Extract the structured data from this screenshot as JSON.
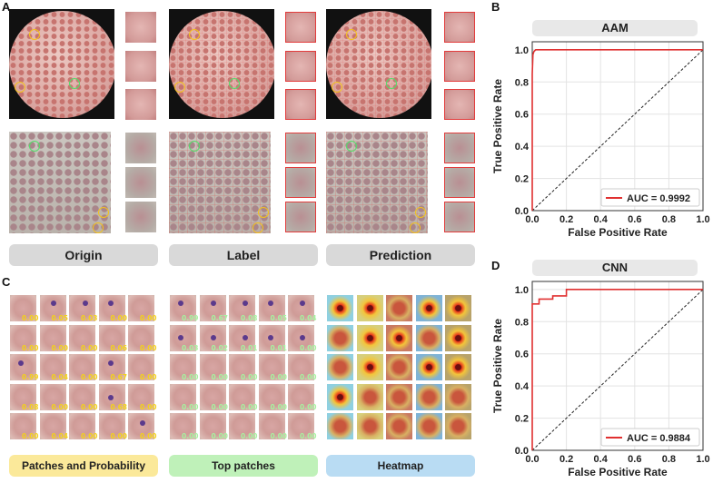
{
  "panels": {
    "a": "A",
    "b": "B",
    "c": "C",
    "d": "D"
  },
  "panel_a": {
    "captions": [
      "Origin",
      "Label",
      "Prediction"
    ]
  },
  "panel_c": {
    "captions": [
      "Patches and Probability",
      "Top patches",
      "Heatmap"
    ],
    "probabilities": [
      [
        "0.00",
        "0.05",
        "0.03",
        "0.00",
        "0.00"
      ],
      [
        "0.00",
        "0.00",
        "0.00",
        "0.06",
        "0.00"
      ],
      [
        "0.99",
        "0.04",
        "0.00",
        "0.67",
        "0.00"
      ],
      [
        "0.08",
        "0.00",
        "0.00",
        "0.68",
        "0.00"
      ],
      [
        "0.00",
        "0.04",
        "0.00",
        "0.00",
        "0.00"
      ]
    ],
    "probability_highlight": [
      [
        false,
        true,
        true,
        true,
        false
      ],
      [
        false,
        false,
        false,
        false,
        false
      ],
      [
        true,
        false,
        false,
        true,
        false
      ],
      [
        false,
        false,
        false,
        true,
        false
      ],
      [
        false,
        false,
        false,
        false,
        true
      ]
    ],
    "top_patch_values": [
      [
        "0.99",
        "0.67",
        "0.08",
        "0.05",
        "0.04"
      ],
      [
        "0.03",
        "0.02",
        "0.01",
        "0.01",
        "0.00"
      ],
      [
        "0.00",
        "0.00",
        "0.00",
        "0.00",
        "0.00"
      ],
      [
        "0.00",
        "0.00",
        "0.00",
        "0.00",
        "0.00"
      ],
      [
        "0.00",
        "0.00",
        "0.00",
        "0.00",
        "0.00"
      ]
    ],
    "heatmap_hotspot": [
      [
        true,
        true,
        false,
        true,
        true
      ],
      [
        false,
        true,
        true,
        false,
        true
      ],
      [
        false,
        true,
        false,
        true,
        true
      ],
      [
        true,
        false,
        false,
        false,
        false
      ],
      [
        false,
        false,
        false,
        false,
        false
      ]
    ]
  },
  "colors": {
    "roc_line": "#e03030",
    "diagonal": "#222222",
    "label_yellow": "#f3d21a",
    "label_green": "#a6f3a0"
  },
  "chart_data": [
    {
      "id": "B",
      "type": "line",
      "title": "AAM",
      "xlabel": "False Positive Rate",
      "ylabel": "True Positive Rate",
      "xlim": [
        0,
        1
      ],
      "ylim": [
        0,
        1.05
      ],
      "ticks": [
        "0.0",
        "0.2",
        "0.4",
        "0.6",
        "0.8",
        "1.0"
      ],
      "grid": true,
      "legend": "bottom-right",
      "series": [
        {
          "name": "AUC = 0.9992",
          "x": [
            0,
            0.0,
            0.004,
            0.01,
            0.02,
            0.05,
            1.0
          ],
          "y": [
            0,
            0.85,
            0.97,
            0.99,
            1.0,
            1.0,
            1.0
          ]
        }
      ],
      "diagonal": true
    },
    {
      "id": "D",
      "type": "line",
      "title": "CNN",
      "xlabel": "False Positive Rate",
      "ylabel": "True Positive Rate",
      "xlim": [
        0,
        1
      ],
      "ylim": [
        0,
        1.05
      ],
      "ticks": [
        "0.0",
        "0.2",
        "0.4",
        "0.6",
        "0.8",
        "1.0"
      ],
      "grid": true,
      "legend": "bottom-right",
      "series": [
        {
          "name": "AUC = 0.9884",
          "x": [
            0,
            0.0,
            0.04,
            0.04,
            0.12,
            0.12,
            0.2,
            0.2,
            1.0
          ],
          "y": [
            0,
            0.91,
            0.91,
            0.94,
            0.94,
            0.96,
            0.96,
            1.0,
            1.0
          ]
        }
      ],
      "diagonal": true
    }
  ]
}
